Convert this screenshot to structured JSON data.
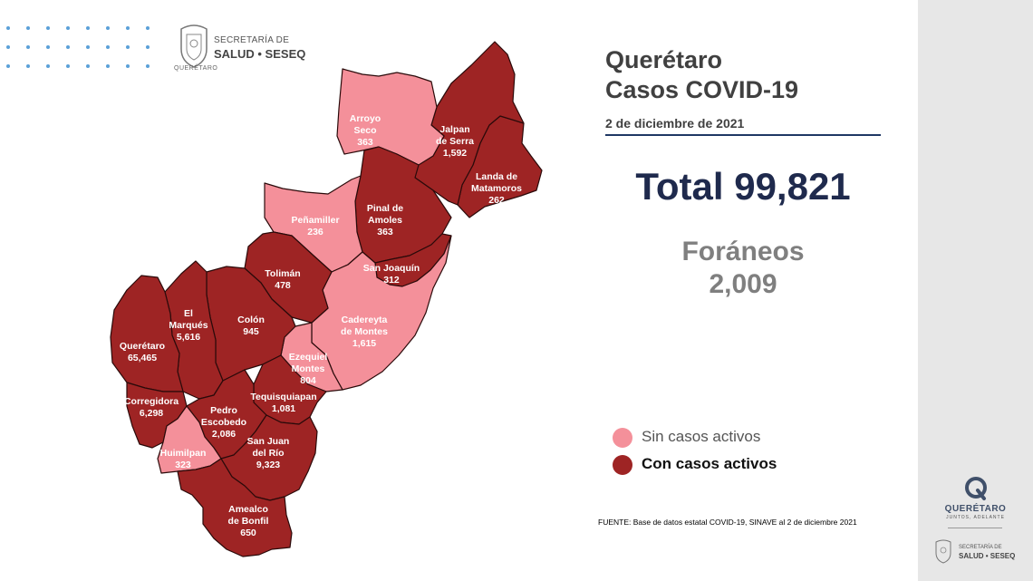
{
  "header": {
    "agency_line1": "SECRETARÍA DE",
    "agency_line2": "SALUD • SESEQ",
    "state": "QUERÉTARO"
  },
  "title_line1": "Querétaro",
  "title_line2": "Casos COVID-19",
  "date": "2 de diciembre de 2021",
  "total_label": "Total 99,821",
  "foraneos_label": "Foráneos",
  "foraneos_value": "2,009",
  "legend": {
    "inactive_label": "Sin casos activos",
    "active_label": "Con casos activos",
    "inactive_color": "#f4909a",
    "active_color": "#9e2424"
  },
  "source": "FUENTE: Base de datos estatal COVID-19, SINAVE  al 2 de diciembre 2021",
  "sidebar": {
    "logo_title": "QUERÉTARO",
    "logo_subtitle": "JUNTOS, ADELANTE",
    "agency_line1": "SECRETARÍA DE",
    "agency_line2": "SALUD • SESEQ"
  },
  "municipalities": [
    {
      "id": "arroyo-seco",
      "name_lines": [
        "Arroyo",
        "Seco"
      ],
      "cases": "363",
      "active": false
    },
    {
      "id": "jalpan",
      "name_lines": [
        "Jalpan",
        "de Serra"
      ],
      "cases": "1,592",
      "active": true
    },
    {
      "id": "landa",
      "name_lines": [
        "Landa de",
        "Matamoros"
      ],
      "cases": "262",
      "active": true
    },
    {
      "id": "pinal",
      "name_lines": [
        "Pinal de",
        "Amoles"
      ],
      "cases": "363",
      "active": true
    },
    {
      "id": "penamiller",
      "name_lines": [
        "Peñamiller"
      ],
      "cases": "236",
      "active": false
    },
    {
      "id": "san-joaquin",
      "name_lines": [
        "San Joaquín"
      ],
      "cases": "312",
      "active": true
    },
    {
      "id": "toliman",
      "name_lines": [
        "Tolimán"
      ],
      "cases": "478",
      "active": true
    },
    {
      "id": "cadereyta",
      "name_lines": [
        "Cadereyta",
        "de Montes"
      ],
      "cases": "1,615",
      "active": false
    },
    {
      "id": "el-marques",
      "name_lines": [
        "El",
        "Marqués"
      ],
      "cases": "5,616",
      "active": true
    },
    {
      "id": "colon",
      "name_lines": [
        "Colón"
      ],
      "cases": "945",
      "active": true
    },
    {
      "id": "queretaro",
      "name_lines": [
        "Querétaro"
      ],
      "cases": "65,465",
      "active": true
    },
    {
      "id": "ezequiel",
      "name_lines": [
        "Ezequiel",
        "Montes"
      ],
      "cases": "804",
      "active": false
    },
    {
      "id": "corregidora",
      "name_lines": [
        "Corregidora"
      ],
      "cases": "6,298",
      "active": true
    },
    {
      "id": "tequisquiapan",
      "name_lines": [
        "Tequisquiapan"
      ],
      "cases": "1,081",
      "active": true
    },
    {
      "id": "pedro-escobedo",
      "name_lines": [
        "Pedro",
        "Escobedo"
      ],
      "cases": "2,086",
      "active": true
    },
    {
      "id": "san-juan",
      "name_lines": [
        "San Juan",
        "del Río"
      ],
      "cases": "9,323",
      "active": true
    },
    {
      "id": "huimilpan",
      "name_lines": [
        "Huimilpan"
      ],
      "cases": "323",
      "active": false
    },
    {
      "id": "amealco",
      "name_lines": [
        "Amealco",
        "de Bonfil"
      ],
      "cases": "650",
      "active": true
    }
  ]
}
